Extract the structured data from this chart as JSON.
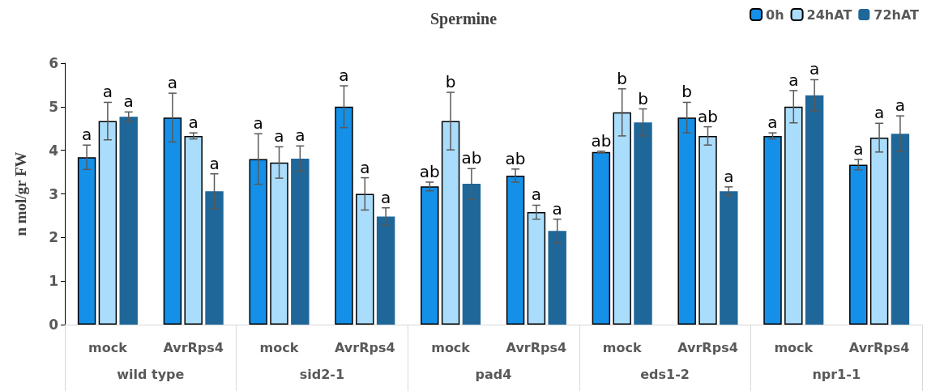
{
  "chart_data": {
    "type": "bar",
    "title": "Spermine",
    "ylabel": "n mol/gr FW",
    "categories": [
      "mock",
      "AvrRps4",
      "mock",
      "AvrRps4",
      "mock",
      "AvrRps4",
      "mock",
      "AvrRps4",
      "mock",
      "AvrRps4"
    ],
    "annotations": [
      "wild type",
      "sid2-1",
      "pad4",
      "eds1-2",
      "npr1-1"
    ],
    "series": [
      {
        "name": "0h",
        "color": "#1490e8",
        "values": [
          3.84,
          4.75,
          3.8,
          5.0,
          3.17,
          3.42,
          3.96,
          4.75,
          4.33,
          3.67
        ],
        "errors": [
          0.28,
          0.56,
          0.58,
          0.48,
          0.1,
          0.15,
          0.02,
          0.35,
          0.07,
          0.12
        ],
        "value_labels": [
          "a",
          "a",
          "a",
          "a",
          "ab",
          "ab",
          "ab",
          "b",
          "a",
          "a"
        ]
      },
      {
        "name": "24hAT",
        "color": "#aadcfc",
        "values": [
          4.67,
          4.33,
          3.72,
          3.0,
          4.67,
          2.58,
          4.87,
          4.33,
          5.0,
          4.29
        ],
        "errors": [
          0.43,
          0.07,
          0.36,
          0.37,
          0.66,
          0.16,
          0.54,
          0.21,
          0.37,
          0.33
        ],
        "value_labels": [
          "a",
          "a",
          "a",
          "a",
          "b",
          "a",
          "b",
          "ab",
          "a",
          "a"
        ]
      },
      {
        "name": "72hAT",
        "color": "#1f6699",
        "values": [
          4.77,
          3.06,
          3.81,
          2.48,
          3.23,
          2.15,
          4.64,
          3.06,
          5.26,
          4.38
        ],
        "errors": [
          0.11,
          0.4,
          0.29,
          0.2,
          0.35,
          0.27,
          0.31,
          0.1,
          0.36,
          0.41
        ],
        "value_labels": [
          "a",
          "a",
          "a",
          "a",
          "ab",
          "a",
          "b",
          "a",
          "a",
          "a"
        ]
      }
    ],
    "ylim": [
      0,
      6
    ],
    "yticks": [
      0,
      1,
      2,
      3,
      4,
      5,
      6
    ],
    "grid": false,
    "legend": "top right"
  }
}
